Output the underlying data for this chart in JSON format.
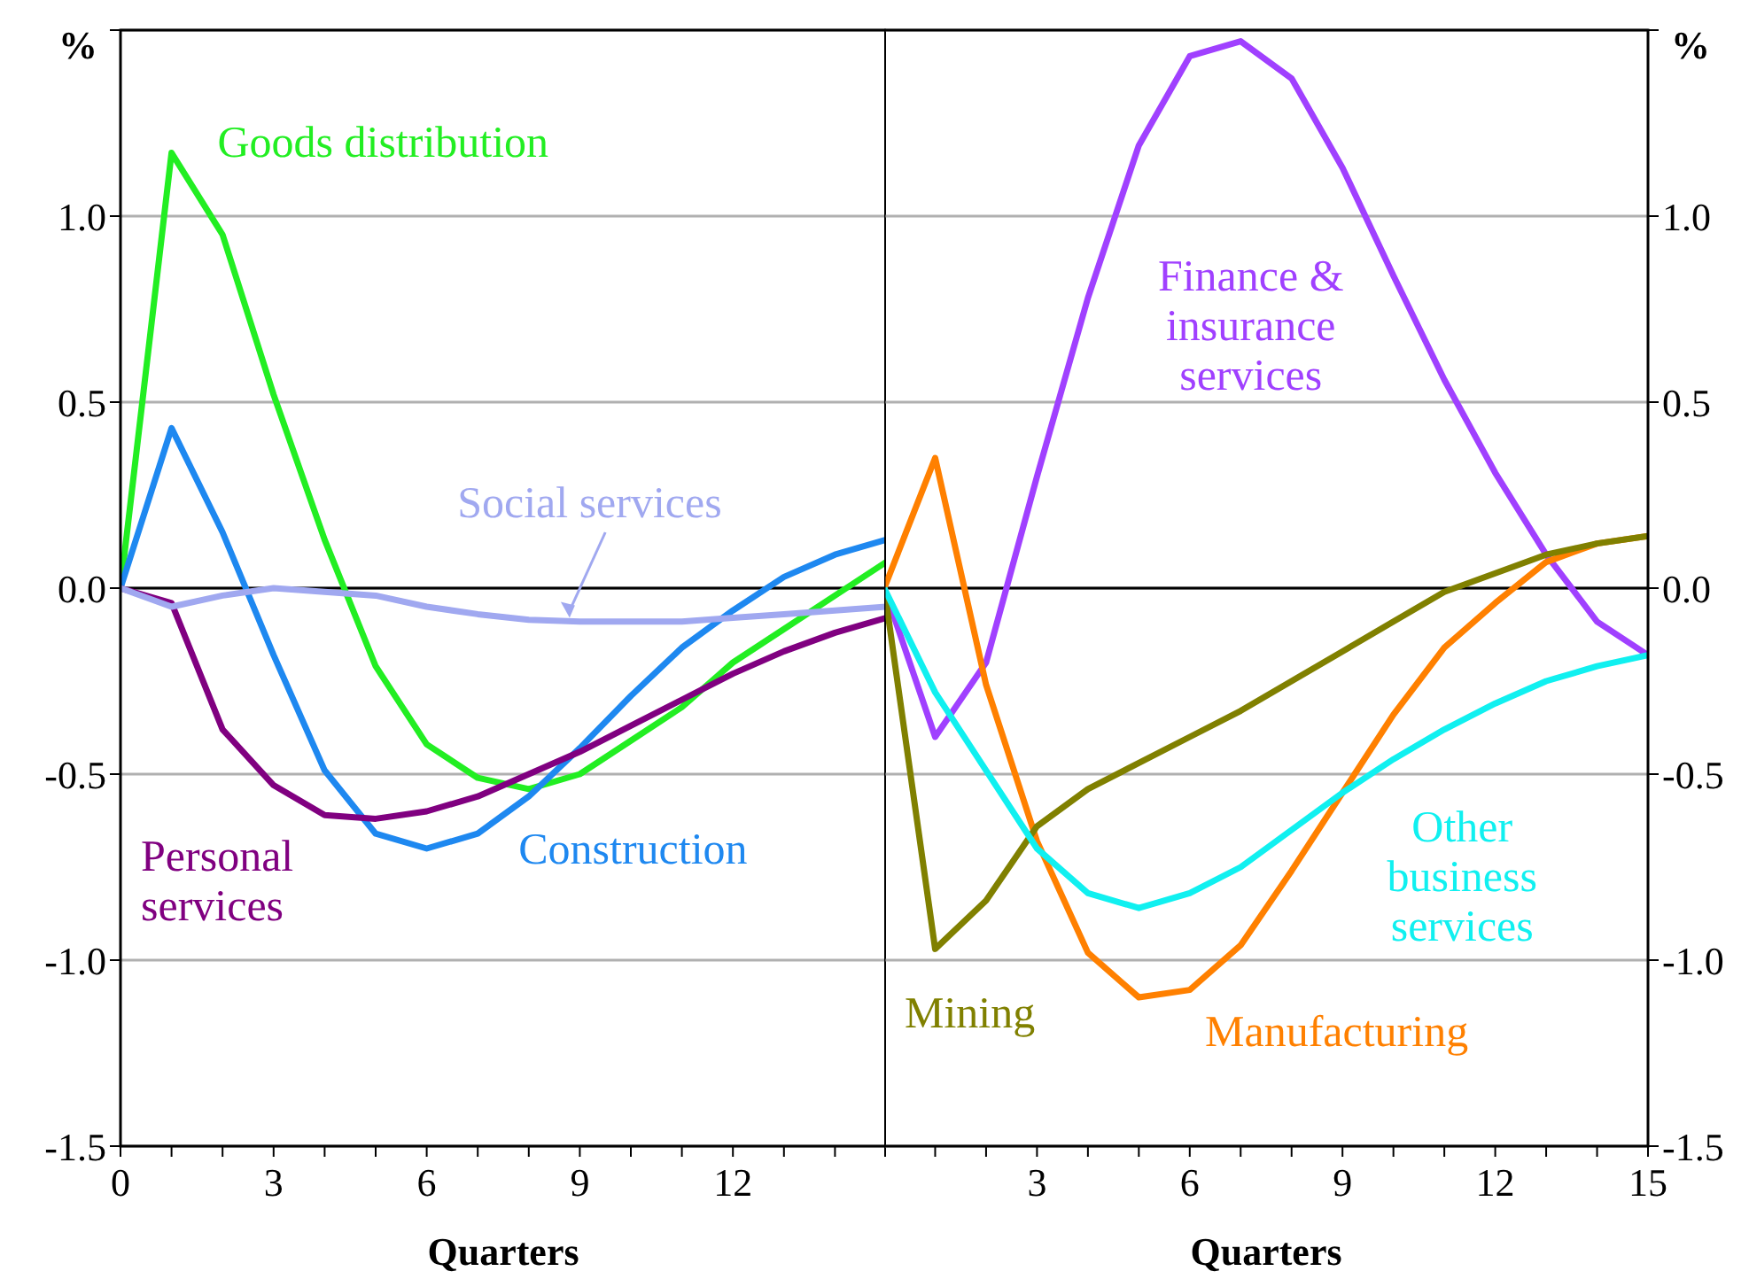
{
  "chart_data": [
    {
      "type": "line",
      "ylabel": "%",
      "xlabel": "Quarters",
      "x": [
        0,
        1,
        2,
        3,
        4,
        5,
        6,
        7,
        8,
        9,
        10,
        11,
        12,
        13,
        14,
        15
      ],
      "xlim": [
        0,
        15
      ],
      "xticks": [
        0,
        {
          "value": 1,
          "label": null
        },
        {
          "value": 2,
          "label": null
        },
        3,
        {
          "value": 4,
          "label": null
        },
        {
          "value": 5,
          "label": null
        },
        6,
        {
          "value": 7,
          "label": null
        },
        {
          "value": 8,
          "label": null
        },
        9,
        {
          "value": 10,
          "label": null
        },
        {
          "value": 11,
          "label": null
        },
        12,
        {
          "value": 13,
          "label": null
        },
        {
          "value": 14,
          "label": null
        },
        {
          "value": 15,
          "label": null
        }
      ],
      "ylim": [
        -1.5,
        1.5
      ],
      "yticks": [
        {
          "value": -1.5,
          "label": "-1.5"
        },
        {
          "value": -1,
          "label": "-1.0"
        },
        {
          "value": -0.5,
          "label": "-0.5"
        },
        {
          "value": 0,
          "label": "0.0"
        },
        {
          "value": 0.5,
          "label": "0.5"
        },
        {
          "value": 1,
          "label": "1.0"
        },
        {
          "value": 1.5,
          "label": null
        }
      ],
      "grid": "y",
      "legend": false,
      "marker": "none",
      "line_style": "solid",
      "ref_lines": [
        {
          "axis": "y",
          "value": 0,
          "color": "#000000"
        }
      ],
      "series": [
        {
          "name": "Goods distribution",
          "color": "#22ee22",
          "values": [
            0,
            1.17,
            0.95,
            0.52,
            0.13,
            -0.21,
            -0.42,
            -0.51,
            -0.54,
            -0.5,
            -0.41,
            -0.32,
            -0.2,
            -0.11,
            -0.02,
            0.07
          ]
        },
        {
          "name": "Construction",
          "color": "#1e88f0",
          "values": [
            0,
            0.43,
            0.15,
            -0.18,
            -0.49,
            -0.66,
            -0.7,
            -0.66,
            -0.56,
            -0.43,
            -0.29,
            -0.16,
            -0.06,
            0.03,
            0.09,
            0.13
          ]
        },
        {
          "name": "Personal services",
          "color": "#800080",
          "values": [
            0,
            -0.04,
            -0.38,
            -0.53,
            -0.61,
            -0.62,
            -0.6,
            -0.56,
            -0.5,
            -0.44,
            -0.37,
            -0.3,
            -0.23,
            -0.17,
            -0.12,
            -0.08
          ]
        },
        {
          "name": "Social services",
          "color": "#a0a8f0",
          "values": [
            0,
            -0.05,
            -0.02,
            0,
            -0.01,
            -0.02,
            -0.05,
            -0.07,
            -0.085,
            -0.09,
            -0.09,
            -0.09,
            -0.08,
            -0.07,
            -0.06,
            -0.05
          ]
        }
      ]
    },
    {
      "type": "line",
      "ylabel": "%",
      "xlabel": "Quarters",
      "x": [
        0,
        1,
        2,
        3,
        4,
        5,
        6,
        7,
        8,
        9,
        10,
        11,
        12,
        13,
        14,
        15
      ],
      "xlim": [
        0,
        15
      ],
      "xticks": [
        {
          "value": 0,
          "label": null
        },
        {
          "value": 1,
          "label": null
        },
        {
          "value": 2,
          "label": null
        },
        3,
        {
          "value": 4,
          "label": null
        },
        {
          "value": 5,
          "label": null
        },
        6,
        {
          "value": 7,
          "label": null
        },
        {
          "value": 8,
          "label": null
        },
        9,
        {
          "value": 10,
          "label": null
        },
        {
          "value": 11,
          "label": null
        },
        12,
        {
          "value": 13,
          "label": null
        },
        {
          "value": 14,
          "label": null
        },
        15
      ],
      "ylim": [
        -1.5,
        1.5
      ],
      "yticks": [
        {
          "value": -1.5,
          "label": "-1.5"
        },
        {
          "value": -1,
          "label": "-1.0"
        },
        {
          "value": -0.5,
          "label": "-0.5"
        },
        {
          "value": 0,
          "label": "0.0"
        },
        {
          "value": 0.5,
          "label": "0.5"
        },
        {
          "value": 1,
          "label": "1.0"
        },
        {
          "value": 1.5,
          "label": null
        }
      ],
      "grid": "y",
      "legend": false,
      "marker": "none",
      "line_style": "solid",
      "ref_lines": [
        {
          "axis": "y",
          "value": 0,
          "color": "#000000"
        }
      ],
      "series": [
        {
          "name": "Finance & insurance services",
          "color": "#a040ff",
          "values": [
            0,
            -0.4,
            -0.2,
            0.3,
            0.78,
            1.19,
            1.43,
            1.47,
            1.37,
            1.13,
            0.84,
            0.56,
            0.31,
            0.09,
            -0.09,
            -0.18
          ]
        },
        {
          "name": "Manufacturing",
          "color": "#ff8000",
          "values": [
            0,
            0.35,
            -0.26,
            -0.68,
            -0.98,
            -1.1,
            -1.08,
            -0.96,
            -0.76,
            -0.55,
            -0.34,
            -0.16,
            -0.04,
            0.07,
            0.12,
            0.14
          ]
        },
        {
          "name": "Mining",
          "color": "#808000",
          "values": [
            0,
            -0.97,
            -0.84,
            -0.64,
            -0.54,
            -0.47,
            -0.4,
            -0.33,
            -0.25,
            -0.17,
            -0.09,
            -0.01,
            0.04,
            0.09,
            0.12,
            0.14
          ]
        },
        {
          "name": "Other business services",
          "color": "#10f0f0",
          "values": [
            0,
            -0.28,
            -0.49,
            -0.7,
            -0.82,
            -0.86,
            -0.82,
            -0.75,
            -0.65,
            -0.55,
            -0.46,
            -0.38,
            -0.31,
            -0.25,
            -0.21,
            -0.18
          ]
        }
      ]
    }
  ]
}
